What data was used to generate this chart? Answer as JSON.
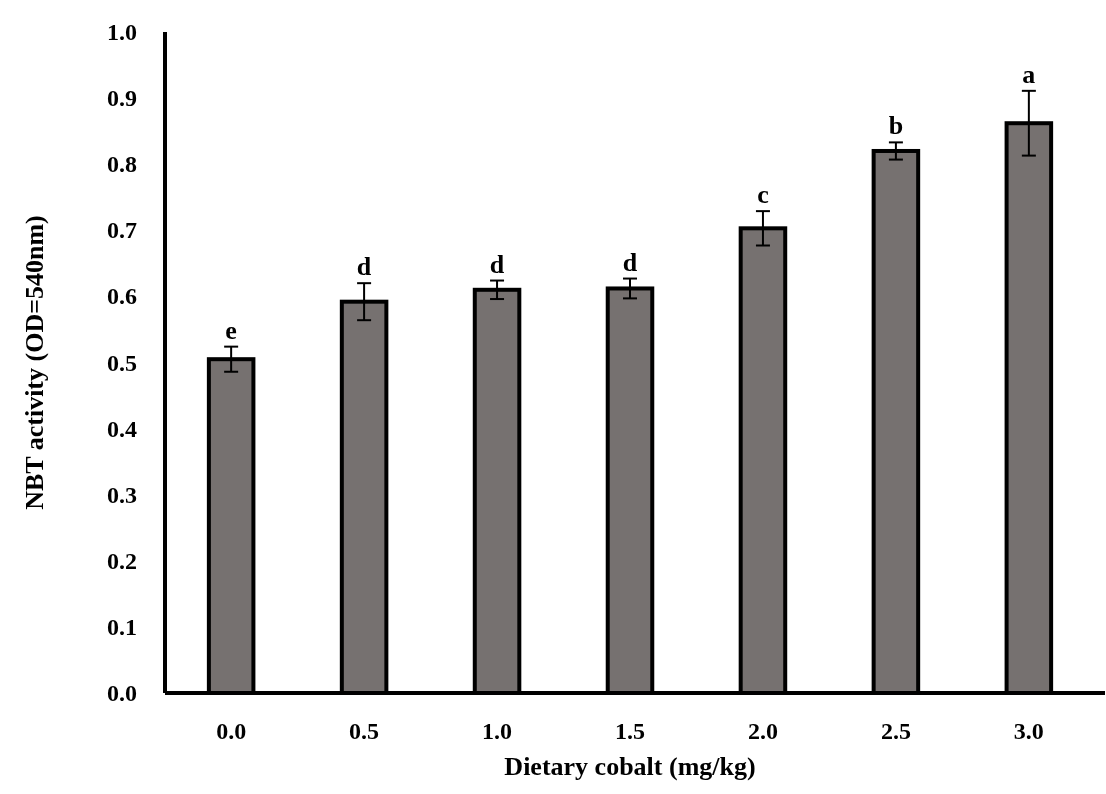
{
  "chart_data": {
    "type": "bar",
    "xlabel": "Dietary cobalt (mg/kg)",
    "ylabel": "NBT activity (OD=540nm)",
    "categories": [
      "0.0",
      "0.5",
      "1.0",
      "1.5",
      "2.0",
      "2.5",
      "3.0"
    ],
    "values": [
      0.505,
      0.592,
      0.61,
      0.612,
      0.703,
      0.82,
      0.862
    ],
    "errors": [
      0.019,
      0.028,
      0.014,
      0.015,
      0.026,
      0.013,
      0.049
    ],
    "color": "#767170",
    "ylim": [
      0,
      1
    ],
    "yticks": [
      {
        "value": 0,
        "label": "0.0"
      },
      0.1,
      0.2,
      0.3,
      0.4,
      0.5,
      0.6,
      0.7,
      0.8,
      0.9,
      {
        "value": 1,
        "label": "1.0"
      }
    ],
    "annotations": [
      {
        "text": "e",
        "x": "0.0",
        "y": 0.524
      },
      {
        "text": "d",
        "x": "0.5",
        "y": 0.62
      },
      {
        "text": "d",
        "x": "1.0",
        "y": 0.624
      },
      {
        "text": "d",
        "x": "1.5",
        "y": 0.627
      },
      {
        "text": "c",
        "x": "2.0",
        "y": 0.729
      },
      {
        "text": "b",
        "x": "2.5",
        "y": 0.833
      },
      {
        "text": "a",
        "x": "3.0",
        "y": 0.911
      }
    ]
  }
}
